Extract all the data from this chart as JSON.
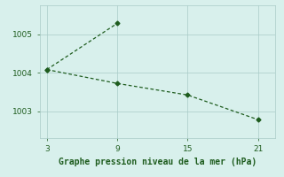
{
  "line1_x": [
    3,
    9
  ],
  "line1_y": [
    1004.08,
    1005.28
  ],
  "line2_x": [
    3,
    9,
    15,
    21
  ],
  "line2_y": [
    1004.08,
    1003.72,
    1003.42,
    1002.78
  ],
  "line_color": "#1e5c1e",
  "marker": "D",
  "markersize": 2.5,
  "background_color": "#d8f0ec",
  "grid_color": "#aaccc8",
  "xlabel": "Graphe pression niveau de la mer (hPa)",
  "xlabel_color": "#1e5c1e",
  "tick_color": "#1e5c1e",
  "xticks": [
    3,
    9,
    15,
    21
  ],
  "yticks": [
    1003,
    1004,
    1005
  ],
  "xlim": [
    2.4,
    22.5
  ],
  "ylim": [
    1002.3,
    1005.75
  ],
  "linewidth": 0.9,
  "fontsize_axis": 6.5,
  "fontsize_xlabel": 7
}
